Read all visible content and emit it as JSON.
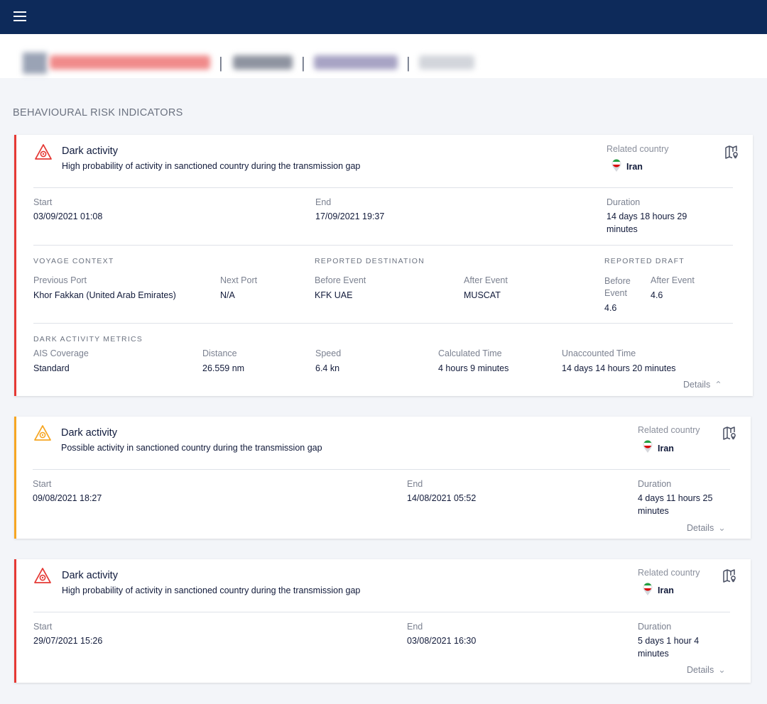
{
  "header": {
    "menu_icon": "menu-icon"
  },
  "vessel_bar": {
    "note": ""
  },
  "section": {
    "title": "BEHAVIOURAL RISK INDICATORS"
  },
  "colors": {
    "topbar": "#0d2a5a",
    "high_risk": "#e53935",
    "medium_risk": "#f6a623"
  },
  "cards": [
    {
      "title": "Dark activity",
      "description": "High probability of activity in sanctioned country during the transmission gap",
      "related_country_label": "Related country",
      "country": "Iran",
      "start_label": "Start",
      "start": "03/09/2021 01:08",
      "end_label": "End",
      "end": "17/09/2021 19:37",
      "duration_label": "Duration",
      "duration": "14 days 18 hours 29 minutes",
      "voyage": {
        "caption": "VOYAGE CONTEXT",
        "previous_port_label": "Previous Port",
        "previous_port": "Khor Fakkan (United Arab Emirates)",
        "next_port_label": "Next Port",
        "next_port": "N/A"
      },
      "destination": {
        "caption": "REPORTED DESTINATION",
        "before_label": "Before Event",
        "before": "KFK UAE",
        "after_label": "After Event",
        "after": "MUSCAT"
      },
      "draft": {
        "caption": "REPORTED DRAFT",
        "before_label": "Before Event",
        "before": "4.6",
        "after_label": "After Event",
        "after": "4.6"
      },
      "metrics": {
        "caption": "DARK ACTIVITY METRICS",
        "ais_label": "AIS Coverage",
        "ais": "Standard",
        "distance_label": "Distance",
        "distance": "26.559 nm",
        "speed_label": "Speed",
        "speed": "6.4 kn",
        "calc_label": "Calculated Time",
        "calc": "4 hours 9 minutes",
        "unacc_label": "Unaccounted Time",
        "unacc": "14 days 14 hours 20 minutes"
      },
      "details_label": "Details"
    },
    {
      "title": "Dark activity",
      "description": "Possible activity in sanctioned country during the transmission gap",
      "related_country_label": "Related country",
      "country": "Iran",
      "start_label": "Start",
      "start": "09/08/2021 18:27",
      "end_label": "End",
      "end": "14/08/2021 05:52",
      "duration_label": "Duration",
      "duration": "4 days 11 hours 25 minutes",
      "details_label": "Details"
    },
    {
      "title": "Dark activity",
      "description": "High probability of activity in sanctioned country during the transmission gap",
      "related_country_label": "Related country",
      "country": "Iran",
      "start_label": "Start",
      "start": "29/07/2021 15:26",
      "end_label": "End",
      "end": "03/08/2021 16:30",
      "duration_label": "Duration",
      "duration": "5 days 1 hour 4 minutes",
      "details_label": "Details"
    }
  ]
}
